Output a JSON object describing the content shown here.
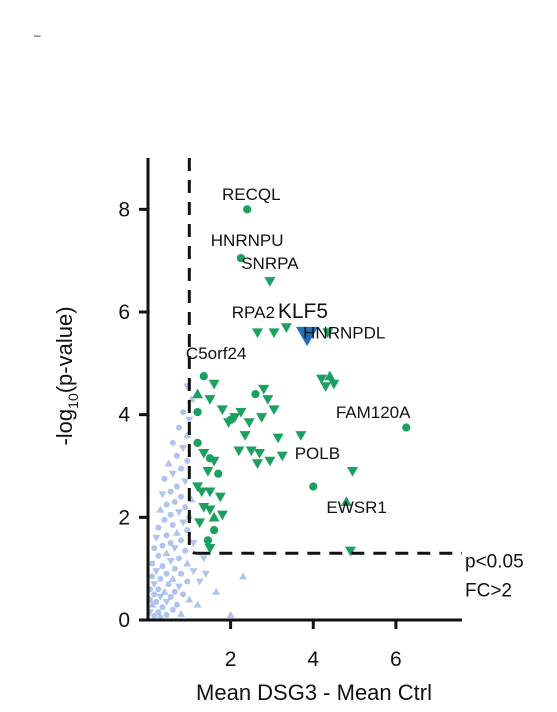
{
  "corner_mark": "–",
  "chart_data": {
    "type": "scatter",
    "xlabel": "Mean DSG3 - Mean Ctrl",
    "ylabel": "-log10(p-value)",
    "ylabel_parts": {
      "pre": "-log",
      "sub": "10",
      "post": "(p-value)"
    },
    "xlim": [
      0,
      7.6
    ],
    "ylim": [
      0,
      9
    ],
    "xticks": [
      2,
      4,
      6
    ],
    "yticks": [
      0,
      2,
      4,
      6,
      8
    ],
    "thresholds": {
      "fc_x": 1.0,
      "p_y": 1.3
    },
    "threshold_labels": [
      "p<0.05",
      "FC>2"
    ],
    "colors": {
      "significant": "#1aa160",
      "not_significant": "#7a9ddf",
      "highlight": "#1f6fb8",
      "axis": "#111111"
    },
    "labels": [
      {
        "text": "RECQL",
        "x": 2.5,
        "y": 8.3,
        "size": "normal"
      },
      {
        "text": "HNRNPU",
        "x": 2.4,
        "y": 7.4,
        "size": "normal"
      },
      {
        "text": "SNRPA",
        "x": 2.95,
        "y": 6.95,
        "size": "normal"
      },
      {
        "text": "RPA2",
        "x": 2.55,
        "y": 6.0,
        "size": "normal"
      },
      {
        "text": "KLF5",
        "x": 3.75,
        "y": 6.0,
        "size": "big"
      },
      {
        "text": "HNRNPDL",
        "x": 4.75,
        "y": 5.6,
        "size": "normal"
      },
      {
        "text": "C5orf24",
        "x": 1.65,
        "y": 5.2,
        "size": "normal"
      },
      {
        "text": "FAM120A",
        "x": 5.45,
        "y": 4.05,
        "size": "normal"
      },
      {
        "text": "POLB",
        "x": 4.1,
        "y": 3.25,
        "size": "normal"
      },
      {
        "text": "EWSR1",
        "x": 5.05,
        "y": 2.2,
        "size": "normal"
      }
    ],
    "series": [
      {
        "group": "highlight",
        "points": [
          {
            "x": 3.85,
            "y": 5.55,
            "shape": "triangle-down",
            "big": true
          }
        ]
      },
      {
        "group": "significant",
        "points": [
          {
            "x": 2.4,
            "y": 8.0,
            "shape": "circle"
          },
          {
            "x": 2.25,
            "y": 7.05,
            "shape": "circle"
          },
          {
            "x": 2.95,
            "y": 6.6,
            "shape": "triangle-down"
          },
          {
            "x": 2.65,
            "y": 5.6,
            "shape": "triangle-down"
          },
          {
            "x": 3.05,
            "y": 5.6,
            "shape": "triangle-down"
          },
          {
            "x": 3.35,
            "y": 5.7,
            "shape": "triangle-down"
          },
          {
            "x": 4.35,
            "y": 5.6,
            "shape": "triangle-down"
          },
          {
            "x": 6.25,
            "y": 3.75,
            "shape": "circle"
          },
          {
            "x": 4.95,
            "y": 2.9,
            "shape": "triangle-down"
          },
          {
            "x": 4.8,
            "y": 2.3,
            "shape": "triangle-up"
          },
          {
            "x": 4.9,
            "y": 1.35,
            "shape": "triangle-down"
          },
          {
            "x": 4.0,
            "y": 2.6,
            "shape": "circle"
          },
          {
            "x": 3.7,
            "y": 3.6,
            "shape": "triangle-down"
          },
          {
            "x": 4.2,
            "y": 4.7,
            "shape": "triangle-down"
          },
          {
            "x": 4.4,
            "y": 4.75,
            "shape": "triangle-up"
          },
          {
            "x": 4.3,
            "y": 4.55,
            "shape": "triangle-down"
          },
          {
            "x": 4.5,
            "y": 4.6,
            "shape": "triangle-down"
          },
          {
            "x": 1.35,
            "y": 4.75,
            "shape": "circle"
          },
          {
            "x": 1.6,
            "y": 4.6,
            "shape": "triangle-down"
          },
          {
            "x": 1.2,
            "y": 4.4,
            "shape": "triangle-up"
          },
          {
            "x": 1.5,
            "y": 4.3,
            "shape": "triangle-down"
          },
          {
            "x": 1.2,
            "y": 4.05,
            "shape": "circle"
          },
          {
            "x": 1.8,
            "y": 4.1,
            "shape": "triangle-down"
          },
          {
            "x": 1.95,
            "y": 3.85,
            "shape": "triangle-down"
          },
          {
            "x": 2.1,
            "y": 3.95,
            "shape": "triangle-down"
          },
          {
            "x": 2.25,
            "y": 4.05,
            "shape": "triangle-down"
          },
          {
            "x": 2.45,
            "y": 3.85,
            "shape": "triangle-down"
          },
          {
            "x": 2.6,
            "y": 4.4,
            "shape": "circle"
          },
          {
            "x": 2.8,
            "y": 4.5,
            "shape": "triangle-down"
          },
          {
            "x": 2.9,
            "y": 4.3,
            "shape": "triangle-down"
          },
          {
            "x": 3.05,
            "y": 4.1,
            "shape": "triangle-down"
          },
          {
            "x": 2.75,
            "y": 3.95,
            "shape": "triangle-down"
          },
          {
            "x": 2.35,
            "y": 3.6,
            "shape": "triangle-down"
          },
          {
            "x": 2.0,
            "y": 3.9,
            "shape": "circle"
          },
          {
            "x": 3.15,
            "y": 3.55,
            "shape": "triangle-down"
          },
          {
            "x": 2.2,
            "y": 3.3,
            "shape": "triangle-down"
          },
          {
            "x": 2.5,
            "y": 3.3,
            "shape": "triangle-down"
          },
          {
            "x": 3.25,
            "y": 3.2,
            "shape": "triangle-down"
          },
          {
            "x": 2.7,
            "y": 3.25,
            "shape": "triangle-down"
          },
          {
            "x": 2.95,
            "y": 3.1,
            "shape": "triangle-down"
          },
          {
            "x": 2.65,
            "y": 3.05,
            "shape": "triangle-down"
          },
          {
            "x": 1.2,
            "y": 3.45,
            "shape": "circle"
          },
          {
            "x": 1.35,
            "y": 3.25,
            "shape": "triangle-down"
          },
          {
            "x": 1.5,
            "y": 3.15,
            "shape": "circle"
          },
          {
            "x": 1.6,
            "y": 3.1,
            "shape": "triangle-down"
          },
          {
            "x": 1.45,
            "y": 2.9,
            "shape": "triangle-down"
          },
          {
            "x": 1.7,
            "y": 2.85,
            "shape": "circle"
          },
          {
            "x": 1.2,
            "y": 2.6,
            "shape": "triangle-down"
          },
          {
            "x": 1.3,
            "y": 2.5,
            "shape": "triangle-down"
          },
          {
            "x": 1.5,
            "y": 2.5,
            "shape": "triangle-down"
          },
          {
            "x": 1.75,
            "y": 2.4,
            "shape": "triangle-down"
          },
          {
            "x": 1.35,
            "y": 2.2,
            "shape": "triangle-down"
          },
          {
            "x": 1.5,
            "y": 2.15,
            "shape": "triangle-down"
          },
          {
            "x": 1.8,
            "y": 2.05,
            "shape": "triangle-down"
          },
          {
            "x": 1.6,
            "y": 2.0,
            "shape": "triangle-up"
          },
          {
            "x": 1.25,
            "y": 1.9,
            "shape": "triangle-down"
          },
          {
            "x": 1.6,
            "y": 1.75,
            "shape": "circle"
          },
          {
            "x": 1.45,
            "y": 1.55,
            "shape": "circle"
          },
          {
            "x": 1.5,
            "y": 1.4,
            "shape": "triangle-down"
          }
        ]
      },
      {
        "group": "not_significant",
        "points": [
          {
            "x": 0.95,
            "y": 4.55,
            "shape": "triangle-down"
          },
          {
            "x": 1.05,
            "y": 4.3,
            "shape": "triangle-up"
          },
          {
            "x": 0.85,
            "y": 4.05,
            "shape": "circle"
          },
          {
            "x": 1.0,
            "y": 3.9,
            "shape": "triangle-down"
          },
          {
            "x": 0.75,
            "y": 3.75,
            "shape": "circle"
          },
          {
            "x": 0.95,
            "y": 3.6,
            "shape": "triangle-up"
          },
          {
            "x": 0.6,
            "y": 3.45,
            "shape": "circle"
          },
          {
            "x": 0.85,
            "y": 3.35,
            "shape": "triangle-down"
          },
          {
            "x": 0.7,
            "y": 3.2,
            "shape": "circle"
          },
          {
            "x": 0.95,
            "y": 3.1,
            "shape": "circle"
          },
          {
            "x": 0.5,
            "y": 3.05,
            "shape": "triangle-up"
          },
          {
            "x": 0.8,
            "y": 2.95,
            "shape": "circle"
          },
          {
            "x": 0.6,
            "y": 2.85,
            "shape": "triangle-down"
          },
          {
            "x": 0.4,
            "y": 2.75,
            "shape": "circle"
          },
          {
            "x": 0.9,
            "y": 2.7,
            "shape": "triangle-down"
          },
          {
            "x": 0.7,
            "y": 2.6,
            "shape": "circle"
          },
          {
            "x": 0.55,
            "y": 2.5,
            "shape": "circle"
          },
          {
            "x": 0.35,
            "y": 2.45,
            "shape": "triangle-down"
          },
          {
            "x": 0.8,
            "y": 2.4,
            "shape": "circle"
          },
          {
            "x": 1.05,
            "y": 2.35,
            "shape": "triangle-up"
          },
          {
            "x": 0.65,
            "y": 2.3,
            "shape": "circle"
          },
          {
            "x": 0.45,
            "y": 2.25,
            "shape": "circle"
          },
          {
            "x": 0.9,
            "y": 2.2,
            "shape": "circle"
          },
          {
            "x": 0.3,
            "y": 2.15,
            "shape": "triangle-up"
          },
          {
            "x": 0.75,
            "y": 2.1,
            "shape": "triangle-down"
          },
          {
            "x": 0.55,
            "y": 2.05,
            "shape": "circle"
          },
          {
            "x": 1.0,
            "y": 2.0,
            "shape": "circle"
          },
          {
            "x": 0.4,
            "y": 1.95,
            "shape": "circle"
          },
          {
            "x": 0.85,
            "y": 1.9,
            "shape": "triangle-down"
          },
          {
            "x": 0.6,
            "y": 1.85,
            "shape": "circle"
          },
          {
            "x": 0.25,
            "y": 1.8,
            "shape": "circle"
          },
          {
            "x": 0.95,
            "y": 1.75,
            "shape": "circle"
          },
          {
            "x": 0.7,
            "y": 1.7,
            "shape": "triangle-up"
          },
          {
            "x": 0.45,
            "y": 1.65,
            "shape": "circle"
          },
          {
            "x": 0.2,
            "y": 1.6,
            "shape": "triangle-down"
          },
          {
            "x": 0.8,
            "y": 1.55,
            "shape": "circle"
          },
          {
            "x": 1.1,
            "y": 1.5,
            "shape": "triangle-down"
          },
          {
            "x": 0.55,
            "y": 1.5,
            "shape": "circle"
          },
          {
            "x": 0.35,
            "y": 1.45,
            "shape": "circle"
          },
          {
            "x": 0.65,
            "y": 1.4,
            "shape": "triangle-down"
          },
          {
            "x": 0.15,
            "y": 1.4,
            "shape": "circle"
          },
          {
            "x": 0.9,
            "y": 1.35,
            "shape": "circle"
          },
          {
            "x": 0.45,
            "y": 1.3,
            "shape": "triangle-up"
          },
          {
            "x": 0.25,
            "y": 1.25,
            "shape": "circle"
          },
          {
            "x": 0.75,
            "y": 1.2,
            "shape": "circle"
          },
          {
            "x": 0.55,
            "y": 1.15,
            "shape": "triangle-down"
          },
          {
            "x": 0.1,
            "y": 1.1,
            "shape": "circle"
          },
          {
            "x": 0.95,
            "y": 1.1,
            "shape": "triangle-up"
          },
          {
            "x": 0.35,
            "y": 1.05,
            "shape": "circle"
          },
          {
            "x": 0.65,
            "y": 1.0,
            "shape": "circle"
          },
          {
            "x": 0.2,
            "y": 0.95,
            "shape": "triangle-down"
          },
          {
            "x": 0.8,
            "y": 0.9,
            "shape": "circle"
          },
          {
            "x": 1.1,
            "y": 0.95,
            "shape": "triangle-down"
          },
          {
            "x": 0.45,
            "y": 0.9,
            "shape": "circle"
          },
          {
            "x": 0.1,
            "y": 0.85,
            "shape": "circle"
          },
          {
            "x": 0.6,
            "y": 0.8,
            "shape": "triangle-up"
          },
          {
            "x": 0.3,
            "y": 0.8,
            "shape": "circle"
          },
          {
            "x": 0.95,
            "y": 0.75,
            "shape": "circle"
          },
          {
            "x": 0.15,
            "y": 0.7,
            "shape": "triangle-down"
          },
          {
            "x": 0.5,
            "y": 0.7,
            "shape": "circle"
          },
          {
            "x": 0.75,
            "y": 0.65,
            "shape": "triangle-down"
          },
          {
            "x": 0.25,
            "y": 0.6,
            "shape": "circle"
          },
          {
            "x": 0.05,
            "y": 0.6,
            "shape": "circle"
          },
          {
            "x": 0.4,
            "y": 0.55,
            "shape": "triangle-up"
          },
          {
            "x": 0.65,
            "y": 0.55,
            "shape": "circle"
          },
          {
            "x": 0.85,
            "y": 0.5,
            "shape": "circle"
          },
          {
            "x": 0.15,
            "y": 0.5,
            "shape": "circle"
          },
          {
            "x": 0.3,
            "y": 0.45,
            "shape": "triangle-down"
          },
          {
            "x": 0.55,
            "y": 0.45,
            "shape": "circle"
          },
          {
            "x": 0.05,
            "y": 0.4,
            "shape": "circle"
          },
          {
            "x": 1.0,
            "y": 0.4,
            "shape": "triangle-up"
          },
          {
            "x": 0.2,
            "y": 0.35,
            "shape": "circle"
          },
          {
            "x": 0.45,
            "y": 0.35,
            "shape": "triangle-down"
          },
          {
            "x": 0.7,
            "y": 0.3,
            "shape": "circle"
          },
          {
            "x": 0.1,
            "y": 0.3,
            "shape": "triangle-up"
          },
          {
            "x": 0.35,
            "y": 0.25,
            "shape": "circle"
          },
          {
            "x": 0.6,
            "y": 0.2,
            "shape": "circle"
          },
          {
            "x": 0.25,
            "y": 0.15,
            "shape": "circle"
          },
          {
            "x": 0.05,
            "y": 0.15,
            "shape": "triangle-down"
          },
          {
            "x": 0.45,
            "y": 0.1,
            "shape": "circle"
          },
          {
            "x": 0.15,
            "y": 0.08,
            "shape": "circle"
          },
          {
            "x": 0.8,
            "y": 0.12,
            "shape": "triangle-up"
          },
          {
            "x": 0.3,
            "y": 0.05,
            "shape": "circle"
          },
          {
            "x": 1.4,
            "y": 0.9,
            "shape": "triangle-down"
          },
          {
            "x": 1.2,
            "y": 0.3,
            "shape": "triangle-up"
          },
          {
            "x": 1.65,
            "y": 0.55,
            "shape": "triangle-up"
          },
          {
            "x": 1.25,
            "y": 0.75,
            "shape": "triangle-down"
          },
          {
            "x": 1.35,
            "y": 1.2,
            "shape": "triangle-down"
          },
          {
            "x": 2.0,
            "y": 0.1,
            "shape": "triangle-up"
          },
          {
            "x": 2.3,
            "y": 0.85,
            "shape": "triangle-up"
          }
        ]
      }
    ]
  }
}
